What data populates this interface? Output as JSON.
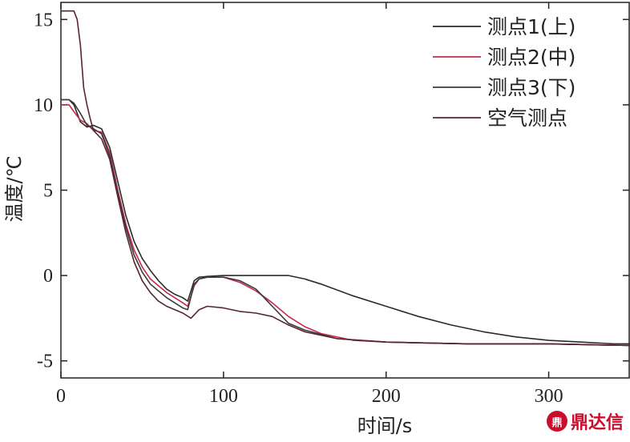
{
  "chart_data": {
    "type": "line",
    "xlabel": "时间/s",
    "ylabel": "温度/℃",
    "xlim": [
      0,
      350
    ],
    "ylim": [
      -6,
      16
    ],
    "xticks": [
      0,
      100,
      200,
      300
    ],
    "yticks": [
      -5,
      0,
      5,
      10,
      15
    ],
    "legend_position": "top-right",
    "series": [
      {
        "name": "测点1(上)",
        "color": "#2b2b2b",
        "points": [
          [
            0,
            10.3
          ],
          [
            5,
            10.3
          ],
          [
            8,
            10.0
          ],
          [
            12,
            9.0
          ],
          [
            16,
            8.7
          ],
          [
            20,
            8.8
          ],
          [
            25,
            8.6
          ],
          [
            30,
            7.5
          ],
          [
            35,
            5.5
          ],
          [
            40,
            3.5
          ],
          [
            45,
            2.0
          ],
          [
            50,
            1.0
          ],
          [
            55,
            0.3
          ],
          [
            60,
            -0.3
          ],
          [
            65,
            -0.8
          ],
          [
            70,
            -1.1
          ],
          [
            75,
            -1.3
          ],
          [
            78,
            -1.5
          ],
          [
            82,
            -0.3
          ],
          [
            85,
            -0.1
          ],
          [
            90,
            -0.05
          ],
          [
            100,
            0
          ],
          [
            120,
            0
          ],
          [
            140,
            0
          ],
          [
            150,
            -0.2
          ],
          [
            160,
            -0.5
          ],
          [
            180,
            -1.2
          ],
          [
            200,
            -1.8
          ],
          [
            220,
            -2.4
          ],
          [
            240,
            -2.9
          ],
          [
            260,
            -3.3
          ],
          [
            280,
            -3.6
          ],
          [
            300,
            -3.8
          ],
          [
            320,
            -3.9
          ],
          [
            340,
            -4.0
          ],
          [
            350,
            -4.0
          ]
        ]
      },
      {
        "name": "测点2(中)",
        "color": "#c8284e",
        "points": [
          [
            0,
            10.0
          ],
          [
            5,
            10.0
          ],
          [
            8,
            9.6
          ],
          [
            12,
            9.1
          ],
          [
            16,
            8.9
          ],
          [
            20,
            8.5
          ],
          [
            25,
            8.4
          ],
          [
            30,
            7.2
          ],
          [
            35,
            5.0
          ],
          [
            40,
            3.0
          ],
          [
            45,
            1.5
          ],
          [
            50,
            0.5
          ],
          [
            55,
            -0.2
          ],
          [
            60,
            -0.6
          ],
          [
            65,
            -1.0
          ],
          [
            70,
            -1.3
          ],
          [
            75,
            -1.6
          ],
          [
            78,
            -1.8
          ],
          [
            82,
            -0.6
          ],
          [
            85,
            -0.2
          ],
          [
            90,
            -0.1
          ],
          [
            100,
            -0.1
          ],
          [
            110,
            -0.4
          ],
          [
            120,
            -0.9
          ],
          [
            130,
            -1.6
          ],
          [
            140,
            -2.4
          ],
          [
            150,
            -3.0
          ],
          [
            160,
            -3.4
          ],
          [
            180,
            -3.8
          ],
          [
            200,
            -3.9
          ],
          [
            250,
            -4.0
          ],
          [
            300,
            -4.0
          ],
          [
            350,
            -4.1
          ]
        ]
      },
      {
        "name": "测点3(下)",
        "color": "#3a3a3a",
        "points": [
          [
            0,
            10.3
          ],
          [
            5,
            10.3
          ],
          [
            8,
            10.1
          ],
          [
            12,
            9.5
          ],
          [
            16,
            8.8
          ],
          [
            20,
            8.6
          ],
          [
            25,
            8.3
          ],
          [
            30,
            7.0
          ],
          [
            35,
            4.8
          ],
          [
            40,
            2.8
          ],
          [
            45,
            1.2
          ],
          [
            50,
            0.2
          ],
          [
            55,
            -0.5
          ],
          [
            60,
            -0.9
          ],
          [
            65,
            -1.3
          ],
          [
            70,
            -1.6
          ],
          [
            75,
            -1.9
          ],
          [
            78,
            -2.0
          ],
          [
            82,
            -0.5
          ],
          [
            85,
            -0.2
          ],
          [
            90,
            -0.1
          ],
          [
            100,
            -0.1
          ],
          [
            110,
            -0.3
          ],
          [
            120,
            -0.8
          ],
          [
            130,
            -1.8
          ],
          [
            140,
            -2.8
          ],
          [
            150,
            -3.2
          ],
          [
            170,
            -3.7
          ],
          [
            200,
            -3.9
          ],
          [
            250,
            -4.0
          ],
          [
            300,
            -4.0
          ],
          [
            350,
            -4.1
          ]
        ]
      },
      {
        "name": "空气测点",
        "color": "#5a2430",
        "points": [
          [
            0,
            15.5
          ],
          [
            8,
            15.5
          ],
          [
            10,
            15.0
          ],
          [
            12,
            13.5
          ],
          [
            14,
            11.0
          ],
          [
            16,
            10.0
          ],
          [
            18,
            9.2
          ],
          [
            20,
            8.5
          ],
          [
            25,
            8.0
          ],
          [
            30,
            6.8
          ],
          [
            35,
            4.6
          ],
          [
            40,
            2.5
          ],
          [
            45,
            0.8
          ],
          [
            50,
            -0.3
          ],
          [
            55,
            -1.0
          ],
          [
            60,
            -1.5
          ],
          [
            65,
            -1.8
          ],
          [
            70,
            -2.0
          ],
          [
            75,
            -2.2
          ],
          [
            80,
            -2.5
          ],
          [
            85,
            -2.0
          ],
          [
            90,
            -1.8
          ],
          [
            100,
            -1.9
          ],
          [
            110,
            -2.1
          ],
          [
            120,
            -2.2
          ],
          [
            130,
            -2.4
          ],
          [
            140,
            -2.9
          ],
          [
            150,
            -3.3
          ],
          [
            170,
            -3.7
          ],
          [
            200,
            -3.9
          ],
          [
            250,
            -4.0
          ],
          [
            300,
            -4.0
          ],
          [
            350,
            -4.1
          ]
        ]
      }
    ]
  },
  "watermark": {
    "logo_glyph": "鼎",
    "text": "鼎达信"
  }
}
